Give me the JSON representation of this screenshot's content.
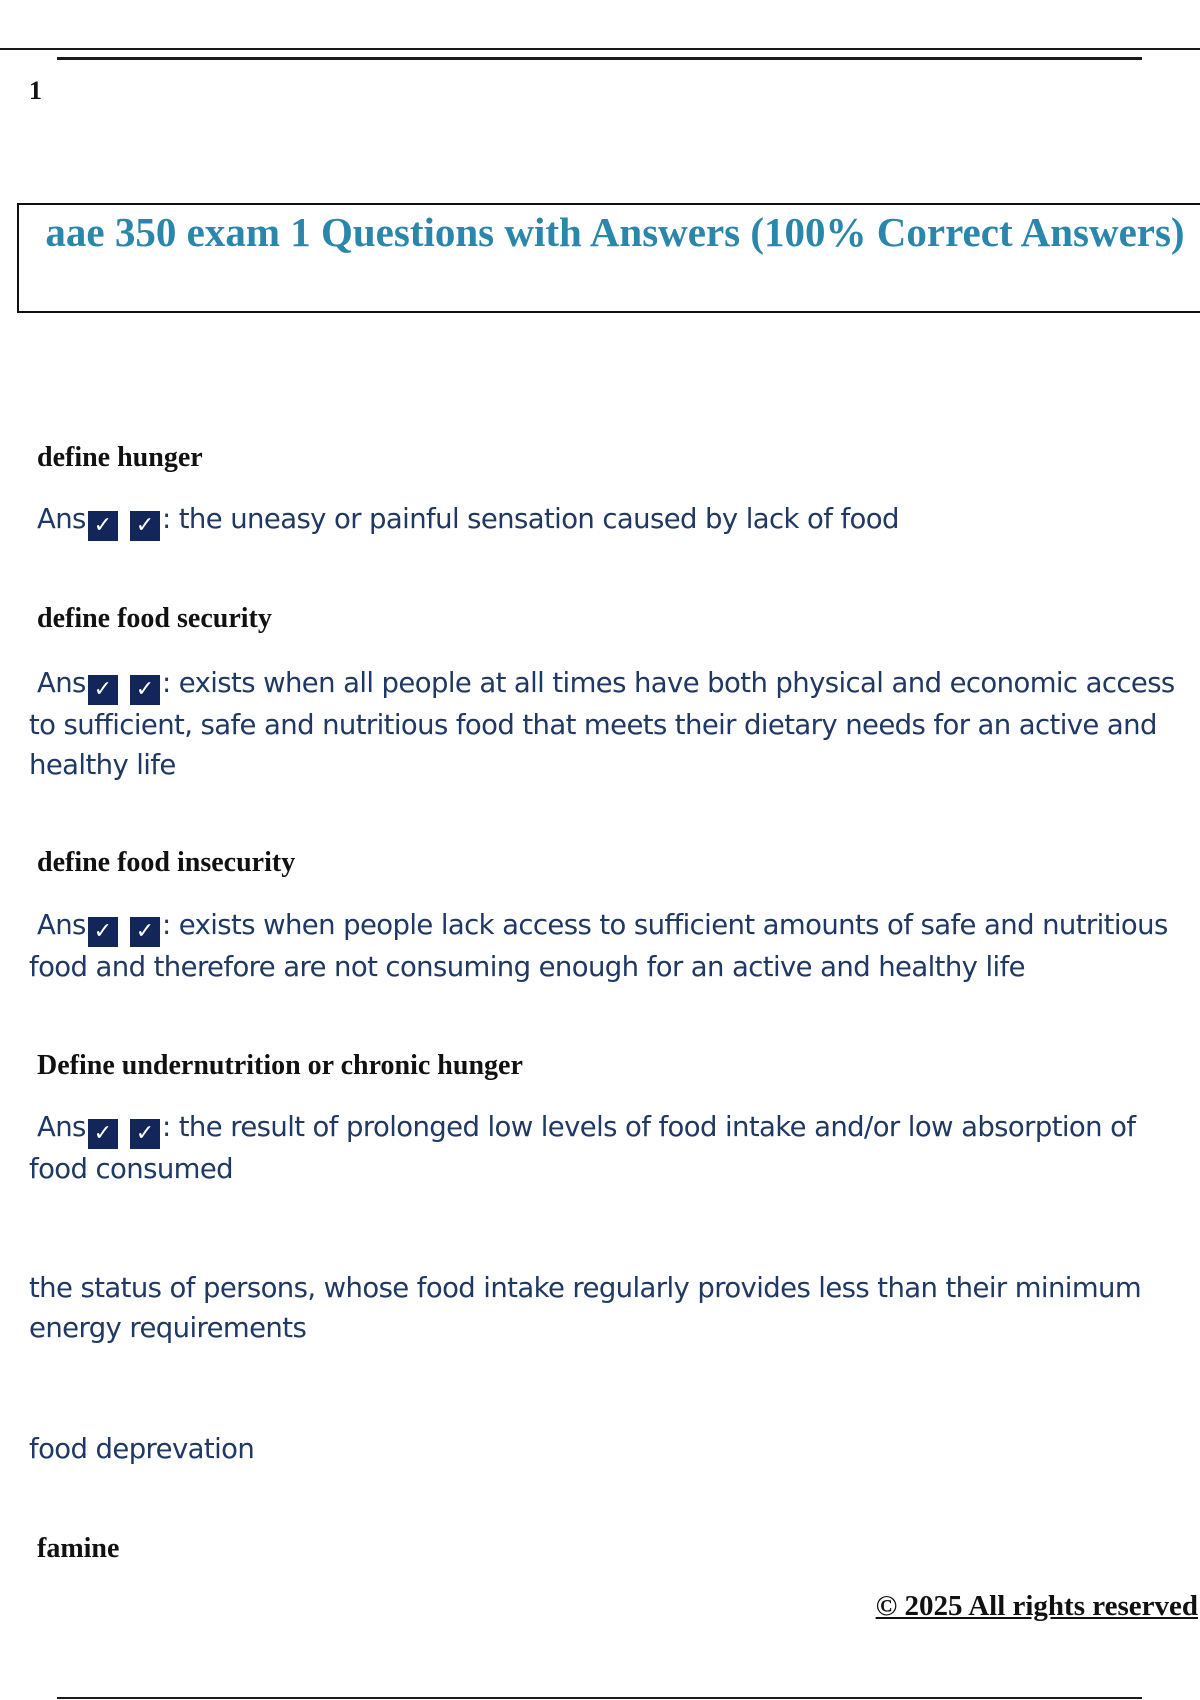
{
  "page_number": "1",
  "title": "aae 350 exam 1 Questions with Answers (100% Correct Answers)",
  "answer_prefix": "Ans",
  "check_icon": "checkbox-checked-icon",
  "check_glyph": "✓",
  "colors": {
    "title": "#2a86aa",
    "answer_text": "#1f3864",
    "checkbox": "#13265a"
  },
  "items": [
    {
      "question": "define hunger",
      "answer": ": the uneasy or painful sensation caused by lack of food"
    },
    {
      "question": "define food security",
      "answer": ": exists when all people at all times have both physical and economic access to sufficient, safe and nutritious food that meets their dietary needs for an active and healthy life"
    },
    {
      "question": "define food insecurity",
      "answer": ": exists when people lack access to sufficient amounts of safe and nutritious food and therefore are not consuming enough for an active and healthy life"
    },
    {
      "question": "Define undernutrition or chronic hunger",
      "answer": ": the result of prolonged low levels of food intake and/or low absorption of food consumed"
    }
  ],
  "extra_lines": [
    "the status of persons, whose food intake regularly provides less than their minimum energy requirements",
    "food deprevation"
  ],
  "last_question": "famine",
  "footer": "© 2025 All rights reserved"
}
